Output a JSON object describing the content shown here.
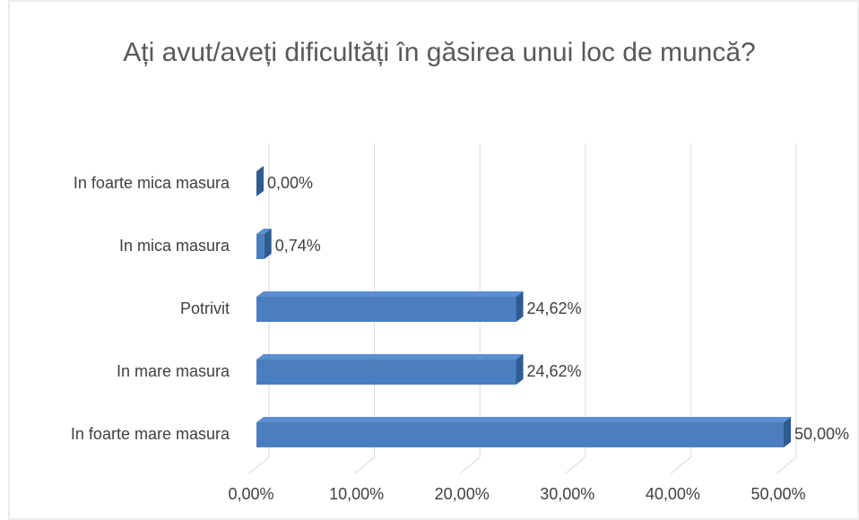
{
  "chart_data": {
    "type": "bar",
    "orientation": "horizontal",
    "title": "Ați avut/aveți dificultăți în găsirea unui loc de muncă?",
    "categories": [
      "In foarte mica masura",
      "In mica masura",
      "Potrivit",
      "In mare masura",
      "In foarte mare masura"
    ],
    "values": [
      0,
      0.74,
      24.62,
      24.62,
      50
    ],
    "value_labels": [
      "0,00%",
      "0,74%",
      "24,62%",
      "24,62%",
      "50,00%"
    ],
    "color": "#4a7ebf",
    "xlim": [
      0,
      50
    ],
    "xticks": [
      {
        "value": 0,
        "label": "0,00%"
      },
      {
        "value": 10,
        "label": "10,00%"
      },
      {
        "value": 20,
        "label": "20,00%"
      },
      {
        "value": 30,
        "label": "30,00%"
      },
      {
        "value": 40,
        "label": "40,00%"
      },
      {
        "value": 50,
        "label": "50,00%"
      }
    ],
    "grid": true
  }
}
